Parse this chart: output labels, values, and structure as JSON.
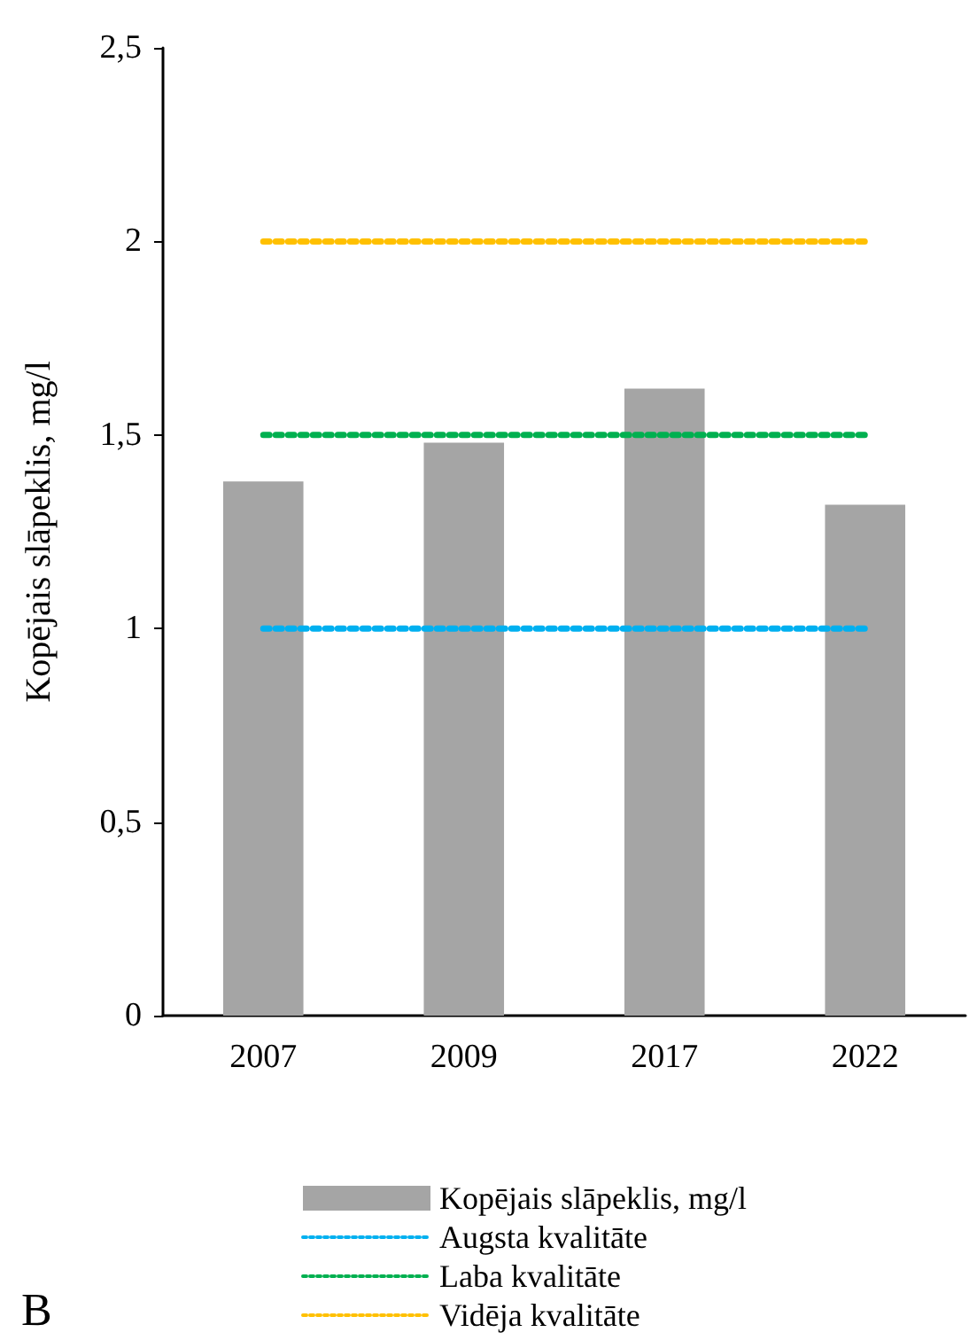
{
  "chart_data": {
    "type": "bar",
    "ylabel": "Kopējais slāpeklis, mg/l",
    "categories": [
      "2007",
      "2009",
      "2017",
      "2022"
    ],
    "series": [
      {
        "name": "Kopējais slāpeklis, mg/l",
        "color": "#a5a5a5",
        "values": [
          1.38,
          1.48,
          1.62,
          1.32
        ]
      },
      {
        "name": "Augsta kvalitāte",
        "type": "line",
        "color": "#00b0f0",
        "line_style": "dotted",
        "values": [
          1,
          1,
          1,
          1
        ]
      },
      {
        "name": "Laba kvalitāte",
        "type": "line",
        "color": "#00b050",
        "line_style": "dotted",
        "values": [
          1.5,
          1.5,
          1.5,
          1.5
        ]
      },
      {
        "name": "Vidēja kvalitāte",
        "type": "line",
        "color": "#ffc000",
        "line_style": "dotted",
        "values": [
          2,
          2,
          2,
          2
        ]
      }
    ],
    "ylim": [
      0,
      2.5
    ],
    "yticks": [
      0,
      {
        "value": 0.5,
        "label": "0,5"
      },
      1,
      {
        "value": 1.5,
        "label": "1,5"
      },
      2,
      {
        "value": 2.5,
        "label": "2,5"
      }
    ],
    "grid": false,
    "legend": "bottom",
    "marker": "none",
    "annotations": [
      "B"
    ]
  }
}
